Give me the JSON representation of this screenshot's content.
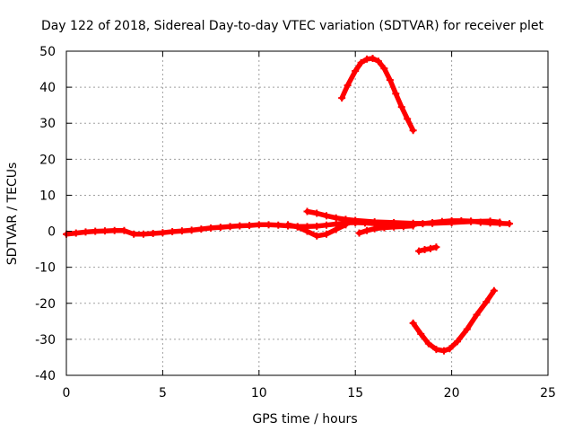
{
  "chart_data": {
    "type": "scatter",
    "title": "Day 122 of 2018, Sidereal Day-to-day VTEC variation (SDTVAR) for receiver plet",
    "xlabel": "GPS time / hours",
    "ylabel": "SDTVAR / TECUs",
    "xlim": [
      0,
      25
    ],
    "ylim": [
      -40,
      50
    ],
    "xticks": [
      0,
      5,
      10,
      15,
      20,
      25
    ],
    "yticks": [
      -40,
      -30,
      -20,
      -10,
      0,
      10,
      20,
      30,
      40,
      50
    ],
    "grid": true,
    "marker_color": "#ff0000",
    "series": [
      {
        "name": "main-band",
        "x": [
          0,
          0.5,
          1,
          1.5,
          2,
          2.5,
          3,
          3.5,
          4,
          4.5,
          5,
          5.5,
          6,
          6.5,
          7,
          7.5,
          8,
          8.5,
          9,
          9.5,
          10,
          10.5,
          11,
          11.5,
          12,
          12.5,
          13,
          13.5,
          14,
          14.5,
          15,
          15.5,
          16,
          16.5,
          17,
          17.5,
          18,
          18.5,
          19,
          19.5,
          20,
          20.5,
          21,
          21.5,
          22,
          22.5,
          23
        ],
        "y": [
          -0.8,
          -0.5,
          -0.2,
          0,
          0.1,
          0.2,
          0.2,
          -0.8,
          -0.8,
          -0.6,
          -0.4,
          -0.1,
          0.1,
          0.3,
          0.6,
          0.9,
          1.1,
          1.3,
          1.5,
          1.6,
          1.8,
          1.8,
          1.7,
          1.5,
          1.3,
          1.3,
          1.4,
          1.7,
          2.0,
          2.3,
          2.4,
          2.3,
          2.1,
          1.9,
          1.8,
          1.9,
          2.0,
          2.1,
          2.4,
          2.7,
          2.9,
          2.9,
          2.8,
          2.5,
          2.3,
          2.2,
          2.1
        ]
      },
      {
        "name": "dip-track",
        "x": [
          11.5,
          12,
          12.5,
          13,
          13.5,
          14,
          14.5
        ],
        "y": [
          1.8,
          1.2,
          0,
          -1.3,
          -0.8,
          0.5,
          1.8
        ]
      },
      {
        "name": "upper-track",
        "x": [
          12.5,
          13,
          13.5,
          14,
          14.5,
          15,
          16,
          17,
          18,
          19,
          20,
          21,
          22,
          22.5
        ],
        "y": [
          5.5,
          5.0,
          4.3,
          3.7,
          3.3,
          3.0,
          2.6,
          2.4,
          2.2,
          2.2,
          2.4,
          2.7,
          2.8,
          2.5
        ]
      },
      {
        "name": "lower-track",
        "x": [
          15.2,
          15.6,
          16,
          16.5,
          17,
          17.5,
          18
        ],
        "y": [
          -0.5,
          0.2,
          0.7,
          1.0,
          1.2,
          1.3,
          1.5
        ]
      },
      {
        "name": "arc-high",
        "x": [
          14.3,
          14.6,
          15,
          15.3,
          15.6,
          15.9,
          16.2,
          16.5,
          16.8,
          17.1,
          17.4,
          17.7,
          18
        ],
        "y": [
          37,
          40.5,
          44.5,
          46.8,
          47.8,
          48.0,
          47.2,
          45.2,
          42.0,
          38.2,
          34.5,
          31.2,
          28.0
        ]
      },
      {
        "name": "segment-mid",
        "x": [
          18.3,
          18.6,
          18.9,
          19.2
        ],
        "y": [
          -5.5,
          -5.1,
          -4.8,
          -4.4
        ]
      },
      {
        "name": "arc-low",
        "x": [
          18.0,
          18.4,
          18.8,
          19.2,
          19.6,
          19.9,
          20.3,
          20.8,
          21.3,
          21.8,
          22.2
        ],
        "y": [
          -25.5,
          -28.5,
          -31.2,
          -32.8,
          -33.2,
          -32.6,
          -30.6,
          -27.2,
          -23.2,
          -19.6,
          -16.5
        ]
      }
    ]
  }
}
